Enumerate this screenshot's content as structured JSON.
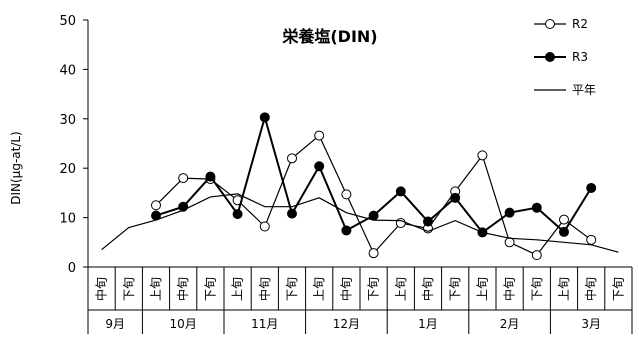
{
  "chart_data": {
    "type": "line",
    "title": "栄養塩(DIN)",
    "ylabel": "DIN(μg-at/L)",
    "xlabel": "",
    "ylim": [
      0,
      50
    ],
    "yticks": [
      0,
      10,
      20,
      30,
      40,
      50
    ],
    "grid": false,
    "legend_position": "top-right",
    "periods": [
      "中旬",
      "下旬",
      "上旬",
      "中旬",
      "下旬",
      "上旬",
      "中旬",
      "下旬",
      "上旬",
      "中旬",
      "下旬",
      "上旬",
      "中旬",
      "下旬",
      "上旬",
      "中旬",
      "下旬",
      "上旬",
      "中旬",
      "下旬"
    ],
    "months": [
      {
        "label": "9月",
        "span": 2
      },
      {
        "label": "10月",
        "span": 3
      },
      {
        "label": "11月",
        "span": 3
      },
      {
        "label": "12月",
        "span": 3
      },
      {
        "label": "1月",
        "span": 3
      },
      {
        "label": "2月",
        "span": 3
      },
      {
        "label": "3月",
        "span": 3
      }
    ],
    "series": [
      {
        "name": "R2",
        "marker": "open-circle",
        "color": "#000000",
        "values": [
          null,
          null,
          12.5,
          18.0,
          17.8,
          13.5,
          8.2,
          22.0,
          26.6,
          14.7,
          2.8,
          8.9,
          7.8,
          15.3,
          22.6,
          5.0,
          2.4,
          9.6,
          5.5,
          null
        ]
      },
      {
        "name": "R3",
        "marker": "filled-circle",
        "color": "#000000",
        "values": [
          null,
          null,
          10.4,
          12.2,
          18.3,
          10.7,
          30.3,
          10.8,
          20.4,
          7.4,
          10.4,
          15.3,
          9.2,
          14.0,
          7.0,
          11.0,
          12.0,
          7.1,
          16.0,
          null
        ]
      },
      {
        "name": "平年",
        "marker": "none",
        "color": "#000000",
        "values": [
          3.5,
          8.0,
          9.5,
          11.5,
          14.2,
          14.8,
          12.2,
          12.2,
          14.0,
          11.0,
          9.5,
          9.4,
          7.2,
          9.4,
          7.0,
          5.8,
          5.5,
          5.0,
          4.5,
          3.0
        ]
      }
    ]
  }
}
